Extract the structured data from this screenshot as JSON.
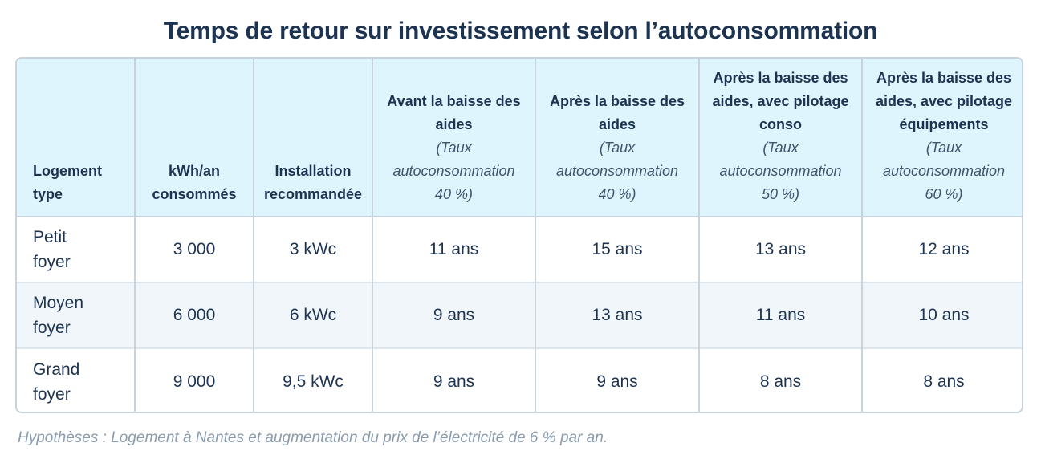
{
  "title": "Temps de retour sur investissement selon l’autoconsommation",
  "table": {
    "headers": [
      {
        "lines": [
          "Logement",
          "type"
        ],
        "sub": []
      },
      {
        "lines": [
          "kWh/an",
          "consommés"
        ],
        "sub": []
      },
      {
        "lines": [
          "Installation",
          "recommandée"
        ],
        "sub": []
      },
      {
        "lines": [
          "Avant la baisse des",
          "aides"
        ],
        "sub": [
          "(Taux",
          "autoconsommation",
          "40 %)"
        ]
      },
      {
        "lines": [
          "Après la baisse des",
          "aides"
        ],
        "sub": [
          "(Taux",
          "autoconsommation",
          "40 %)"
        ]
      },
      {
        "lines": [
          "Après la baisse des",
          "aides, avec pilotage",
          "conso"
        ],
        "sub": [
          "(Taux",
          "autoconsommation",
          "50 %)"
        ]
      },
      {
        "lines": [
          "Après la baisse des",
          "aides, avec pilotage",
          "équipements"
        ],
        "sub": [
          "(Taux",
          "autoconsommation",
          "60 %)"
        ]
      }
    ],
    "rows": [
      {
        "type": [
          "Petit",
          "foyer"
        ],
        "kwh": "3 000",
        "install": "3 kWc",
        "avant": "11 ans",
        "apres": "15 ans",
        "pilotage_conso": "13 ans",
        "pilotage_equip": "12 ans"
      },
      {
        "type": [
          "Moyen",
          "foyer"
        ],
        "kwh": "6 000",
        "install": "6 kWc",
        "avant": "9 ans",
        "apres": "13 ans",
        "pilotage_conso": "11 ans",
        "pilotage_equip": "10 ans"
      },
      {
        "type": [
          "Grand",
          "foyer"
        ],
        "kwh": "9 000",
        "install": "9,5 kWc",
        "avant": "9 ans",
        "apres": "9 ans",
        "pilotage_conso": "8 ans",
        "pilotage_equip": "8 ans"
      }
    ]
  },
  "note": "Hypothèses : Logement à Nantes et augmentation du prix de l’électricité de 6 % par an.",
  "colors": {
    "header_bg": "#def5fd",
    "alt_row_bg": "#f1f6fb",
    "border": "#c8d3dc",
    "title": "#1c3352",
    "note": "#8a9bad"
  }
}
